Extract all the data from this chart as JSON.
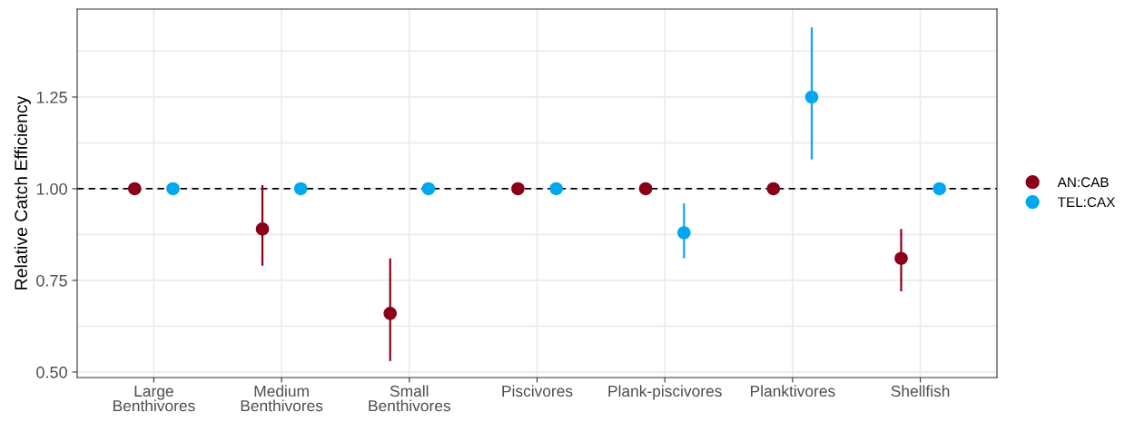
{
  "chart_data": {
    "type": "scatter",
    "ylabel": "Relative Catch Efficiency",
    "categories": [
      "Large\nBenthivores",
      "Medium\nBenthivores",
      "Small\nBenthivores",
      "Piscivores",
      "Plank-piscivores",
      "Planktivores",
      "Shellfish"
    ],
    "series": [
      {
        "name": "AN:CAB",
        "color": "#8b0019",
        "values": [
          1.0,
          0.89,
          0.66,
          1.0,
          1.0,
          1.0,
          0.81
        ],
        "errors": [
          null,
          [
            0.79,
            1.01
          ],
          [
            0.53,
            0.81
          ],
          null,
          null,
          null,
          [
            0.72,
            0.89
          ]
        ]
      },
      {
        "name": "TEL:CAX",
        "color": "#00a9ef",
        "values": [
          1.0,
          1.0,
          1.0,
          1.0,
          0.88,
          1.25,
          1.0
        ],
        "errors": [
          null,
          null,
          null,
          null,
          [
            0.81,
            0.96
          ],
          [
            1.08,
            1.44
          ],
          null
        ]
      }
    ],
    "ylim": [
      0.485,
      1.49
    ],
    "yticks": [
      {
        "value": 0.5,
        "label": "0.50"
      },
      {
        "value": 0.625,
        "label": null
      },
      0.75,
      {
        "value": 0.875,
        "label": null
      },
      {
        "value": 1.0,
        "label": "1.00"
      },
      {
        "value": 1.125,
        "label": null
      },
      1.25,
      {
        "value": 1.375,
        "label": null
      }
    ],
    "ref_lines": [
      {
        "axis": "y",
        "value": 1.0,
        "color": "#000000",
        "line_style": "dashed"
      }
    ],
    "grid": true,
    "legend": "right",
    "marker": "circle"
  }
}
